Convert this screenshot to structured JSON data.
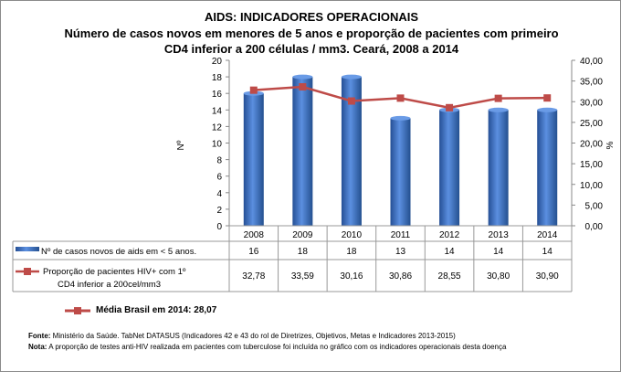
{
  "chart_data": {
    "type": "bar+line",
    "title": "AIDS: INDICADORES OPERACIONAIS",
    "subtitle_line1": "Número de casos novos em menores de 5 anos e proporção de pacientes com primeiro",
    "subtitle_line2": "CD4 inferior a 200 células / mm3. Ceará, 2008 a 2014",
    "categories": [
      "2008",
      "2009",
      "2010",
      "2011",
      "2012",
      "2013",
      "2014"
    ],
    "ylabel_left": "Nº",
    "ylabel_right": "%",
    "ylim_left": [
      0,
      20
    ],
    "yticks_left": [
      "0",
      "2",
      "4",
      "6",
      "8",
      "10",
      "12",
      "14",
      "16",
      "18",
      "20"
    ],
    "ylim_right": [
      0,
      40
    ],
    "yticks_right": [
      "0,00",
      "5,00",
      "10,00",
      "15,00",
      "20,00",
      "25,00",
      "30,00",
      "35,00",
      "40,00"
    ],
    "series": [
      {
        "name": "Nº de casos novos de aids em < 5 anos.",
        "type": "bar",
        "axis": "left",
        "color": "#3a6fc4",
        "values": [
          16,
          18,
          18,
          13,
          14,
          14,
          14
        ],
        "labels": [
          "16",
          "18",
          "18",
          "13",
          "14",
          "14",
          "14"
        ]
      },
      {
        "name_line1": "Proporção de pacientes HIV+ com 1º",
        "name_line2": "CD4 inferior a 200cel/mm3",
        "type": "line",
        "axis": "right",
        "color": "#be4b48",
        "values": [
          32.78,
          33.59,
          30.16,
          30.86,
          28.55,
          30.8,
          30.9
        ],
        "labels": [
          "32,78",
          "33,59",
          "30,16",
          "30,86",
          "28,55",
          "30,80",
          "30,90"
        ]
      }
    ],
    "grid": false,
    "legend": "data-table"
  },
  "reference": {
    "label": "Média Brasil em 2014: 28,07",
    "color": "#be4b48"
  },
  "footer": {
    "fonte_label": "Fonte:",
    "fonte_text": " Ministério da Saúde. TabNet DATASUS (Indicadores 42 e 43 do rol de Diretrizes, Objetivos, Metas e Indicadores 2013-2015)",
    "nota_label": "Nota:",
    "nota_text": " A proporção de testes anti-HIV realizada em pacientes com tuberculose foi incluída no gráfico com os indicadores operacionais desta doença"
  }
}
